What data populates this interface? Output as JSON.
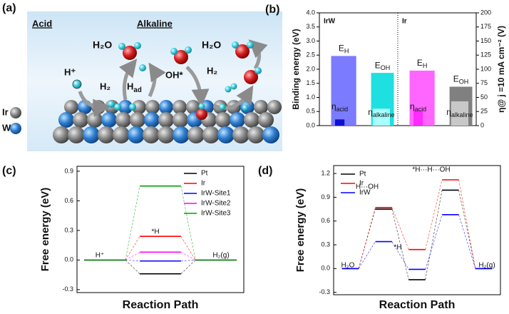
{
  "illustration": {
    "panel": "(a)",
    "labels": {
      "acid": "Acid",
      "alkaline": "Alkaline",
      "h2o_left": "H₂O",
      "h_plus": "H⁺",
      "h2_left": "H₂",
      "h_ad": "H_ad",
      "oh": "OH*",
      "h2o_right": "H₂O",
      "h2_right": "H₂",
      "ir": "Ir",
      "w": "W"
    }
  },
  "chart_data": [
    {
      "type": "bar",
      "panel": "(b)",
      "categories": [
        "IrW",
        "Ir"
      ],
      "ylabel": "Binding energy (eV)",
      "y2label": "η@ j =10 mA cm⁻² (V)",
      "ylim": [
        0,
        4
      ],
      "yticks": [
        {
          "value": 0,
          "label": "0.0"
        },
        0.5,
        {
          "value": 1,
          "label": "1.0"
        },
        1.5,
        {
          "value": 2,
          "label": "2.0"
        },
        2.5,
        {
          "value": 3,
          "label": "3.0"
        },
        3.5,
        {
          "value": 4,
          "label": "4.0"
        }
      ],
      "y2lim": [
        0,
        200
      ],
      "y2ticks": [
        0,
        25,
        50,
        75,
        100,
        125,
        150,
        175,
        200
      ],
      "series": [
        {
          "name": "E_H",
          "colors": [
            "#7b7bff",
            "#ff66ff"
          ],
          "values": [
            2.47,
            1.95
          ]
        },
        {
          "name": "E_OH",
          "colors": [
            "#1ee0e0",
            "#808080"
          ],
          "values": [
            1.87,
            1.38
          ]
        },
        {
          "name": "η_acid",
          "axis": "y2",
          "colors": [
            "#1010d0",
            "#ff2bff"
          ],
          "values": [
            11,
            27
          ]
        },
        {
          "name": "η_alkaline",
          "axis": "y2",
          "colors": [
            "#a8ffff",
            "#c8c8c8"
          ],
          "values": [
            30,
            43
          ]
        }
      ]
    },
    {
      "type": "energy",
      "panel": "(c)",
      "ylabel": "Free energy (eV)",
      "xlabel": "Reaction Path",
      "categories": [
        "H⁺",
        "*H",
        "H₂(g)"
      ],
      "ylim": [
        -0.33,
        0.95
      ],
      "yticks": [
        -0.3,
        {
          "value": 0,
          "label": "0.0"
        },
        0.3,
        0.6,
        0.9
      ],
      "series": [
        {
          "name": "Pt",
          "color": "#000000",
          "values": [
            0,
            -0.14,
            0
          ]
        },
        {
          "name": "Ir",
          "color": "#ff0000",
          "values": [
            0,
            0.24,
            0
          ]
        },
        {
          "name": "IrW-Site1",
          "color": "#0000ff",
          "values": [
            0,
            -0.01,
            0
          ]
        },
        {
          "name": "IrW-Site2",
          "color": "#ff00ff",
          "values": [
            0,
            0.08,
            0
          ]
        },
        {
          "name": "IrW-Site3",
          "color": "#00a000",
          "values": [
            0,
            0.75,
            0
          ]
        }
      ]
    },
    {
      "type": "energy",
      "panel": "(d)",
      "ylabel": "Free energy (eV)",
      "xlabel": "Reaction Path",
      "categories": [
        "H₂O",
        "H···OH",
        "*H",
        "*H···H···OH",
        "H₂(g)"
      ],
      "ylim": [
        -0.33,
        1.3
      ],
      "yticks": [
        -0.3,
        {
          "value": 0,
          "label": "0.0"
        },
        0.3,
        0.6,
        0.9,
        1.2
      ],
      "series": [
        {
          "name": "Pt",
          "color": "#000000",
          "values": [
            0,
            0.75,
            -0.14,
            0.99,
            0
          ]
        },
        {
          "name": "Ir",
          "color": "#ff0000",
          "values": [
            0,
            0.77,
            0.24,
            1.12,
            0
          ]
        },
        {
          "name": "IrW",
          "color": "#0000ff",
          "values": [
            0,
            0.34,
            -0.01,
            0.68,
            0
          ]
        }
      ]
    }
  ]
}
